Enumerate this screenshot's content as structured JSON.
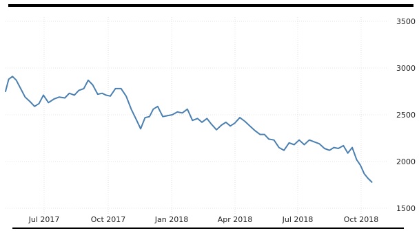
{
  "chart_data": {
    "type": "line",
    "title": "",
    "xlabel": "",
    "ylabel": "",
    "x_tick_labels": [
      "Jul 2017",
      "Oct 2017",
      "Jan 2018",
      "Apr 2018",
      "Jul 2018",
      "Oct 2018"
    ],
    "y_ticks": [
      1500,
      2000,
      2500,
      3000,
      3500
    ],
    "y_tick_labels": [
      "1500",
      "2000",
      "2500",
      "3000",
      "3500"
    ],
    "ylim": [
      1500,
      3500
    ],
    "xlim": [
      "2017-05-01",
      "2018-12-20"
    ],
    "y_axis_side": "right",
    "grid": true,
    "legend": "none",
    "series": [
      {
        "color": "#4a7fb0",
        "x": [
          "2017-05-01",
          "2017-05-06",
          "2017-05-12",
          "2017-05-18",
          "2017-05-25",
          "2017-06-01",
          "2017-06-09",
          "2017-06-16",
          "2017-06-23",
          "2017-06-30",
          "2017-07-08",
          "2017-07-17",
          "2017-07-25",
          "2017-08-03",
          "2017-08-10",
          "2017-08-18",
          "2017-08-25",
          "2017-09-02",
          "2017-09-09",
          "2017-09-16",
          "2017-09-24",
          "2017-10-01",
          "2017-10-07",
          "2017-10-14",
          "2017-10-22",
          "2017-10-31",
          "2017-11-08",
          "2017-11-16",
          "2017-11-24",
          "2017-12-01",
          "2017-12-08",
          "2017-12-15",
          "2017-12-21",
          "2017-12-28",
          "2018-01-05",
          "2018-01-12",
          "2018-01-20",
          "2018-01-28",
          "2018-02-05",
          "2018-02-13",
          "2018-02-21",
          "2018-03-01",
          "2018-03-08",
          "2018-03-16",
          "2018-03-23",
          "2018-03-31",
          "2018-04-08",
          "2018-04-15",
          "2018-04-22",
          "2018-04-29",
          "2018-05-07",
          "2018-05-15",
          "2018-05-23",
          "2018-05-31",
          "2018-06-08",
          "2018-06-15",
          "2018-06-22",
          "2018-06-30",
          "2018-07-08",
          "2018-07-16",
          "2018-07-24",
          "2018-08-01",
          "2018-08-09",
          "2018-08-17",
          "2018-08-25",
          "2018-09-02",
          "2018-09-10",
          "2018-09-18",
          "2018-09-26",
          "2018-10-03",
          "2018-10-10",
          "2018-10-18",
          "2018-10-25",
          "2018-11-01",
          "2018-11-08",
          "2018-11-14",
          "2018-11-20",
          "2018-11-26",
          "2018-12-02"
        ],
        "values": [
          2750,
          2880,
          2910,
          2870,
          2780,
          2690,
          2640,
          2590,
          2620,
          2710,
          2630,
          2670,
          2690,
          2680,
          2730,
          2710,
          2760,
          2780,
          2870,
          2820,
          2720,
          2730,
          2710,
          2700,
          2780,
          2780,
          2700,
          2560,
          2450,
          2350,
          2470,
          2480,
          2560,
          2590,
          2480,
          2490,
          2500,
          2530,
          2520,
          2560,
          2440,
          2460,
          2420,
          2460,
          2400,
          2340,
          2390,
          2420,
          2380,
          2410,
          2470,
          2430,
          2380,
          2330,
          2290,
          2290,
          2240,
          2230,
          2150,
          2120,
          2200,
          2180,
          2230,
          2180,
          2230,
          2210,
          2190,
          2140,
          2120,
          2150,
          2140,
          2170,
          2090,
          2150,
          2020,
          1960,
          1870,
          1820,
          1780
        ]
      }
    ]
  }
}
